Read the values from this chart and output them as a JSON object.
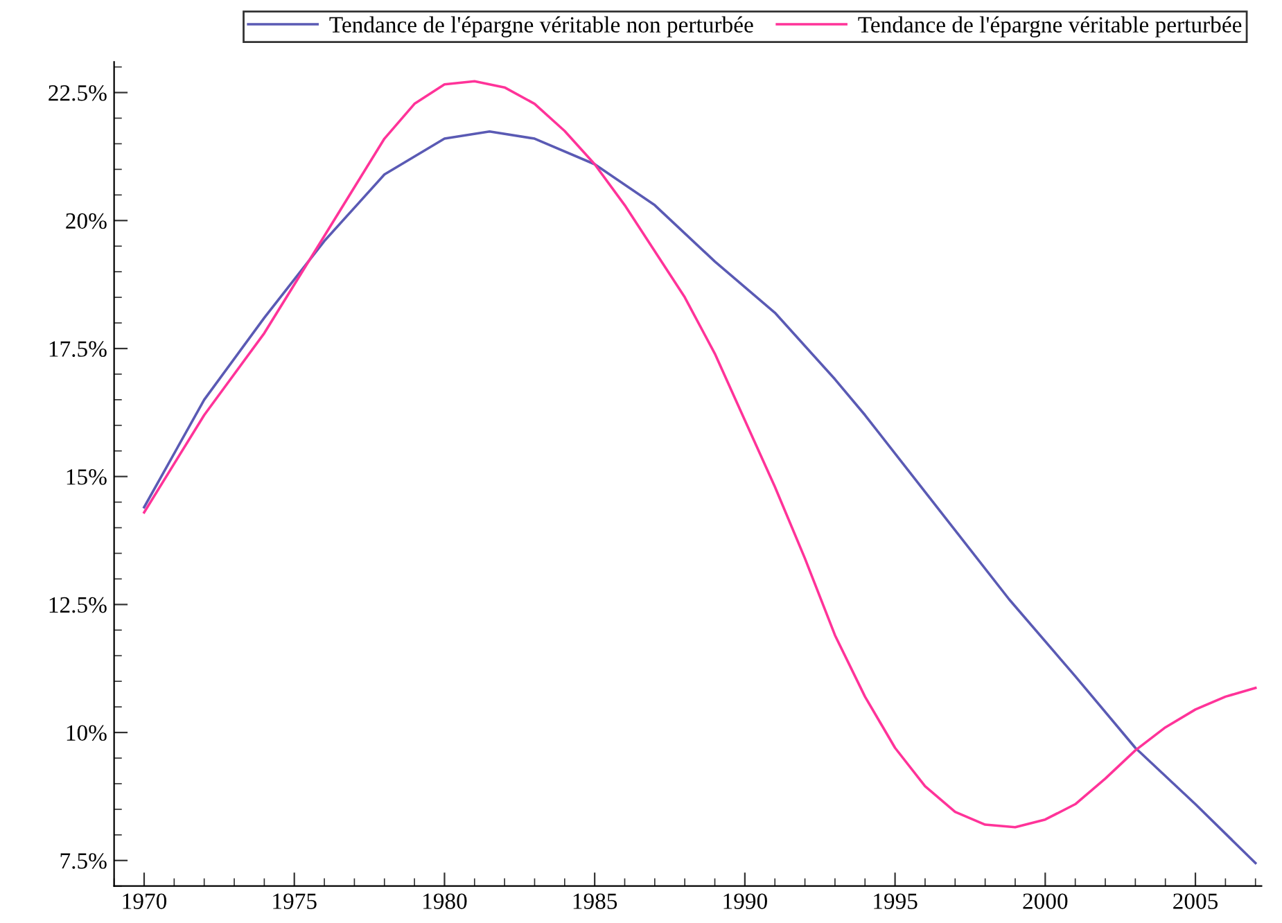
{
  "chart_data": {
    "type": "line",
    "xlim": [
      1969,
      2007.2
    ],
    "ylim": [
      7.0,
      23.1
    ],
    "xticks": [
      1970,
      1975,
      1980,
      1985,
      1990,
      1995,
      2000,
      2005
    ],
    "yticks": [
      {
        "value": 7.5,
        "label": "7.5%"
      },
      {
        "value": 10,
        "label": "10%"
      },
      {
        "value": 12.5,
        "label": "12.5%"
      },
      {
        "value": 15,
        "label": "15%"
      },
      {
        "value": 17.5,
        "label": "17.5%"
      },
      {
        "value": 20,
        "label": "20%"
      },
      {
        "value": 22.5,
        "label": "22.5%"
      }
    ],
    "grid": false,
    "legend": "top",
    "marker": "none",
    "line_style": "solid",
    "series": [
      {
        "name": "Tendance de l'épargne véritable non perturbée",
        "color": "#5a5ab4",
        "x": [
          1970,
          1972,
          1974,
          1976,
          1978,
          1980,
          1981.5,
          1983,
          1985,
          1987,
          1989,
          1991,
          1993,
          1994,
          1996,
          1998.8,
          2001,
          2003,
          2005,
          2007
        ],
        "values": [
          14.4,
          16.5,
          18.1,
          19.6,
          20.9,
          21.6,
          21.74,
          21.6,
          21.1,
          20.3,
          19.2,
          18.2,
          16.9,
          16.2,
          14.7,
          12.6,
          11.1,
          9.7,
          8.6,
          7.45
        ]
      },
      {
        "name": "Tendance de l'épargne véritable perturbée",
        "color": "#ff3399",
        "x": [
          1970,
          1972,
          1974,
          1976,
          1978,
          1979,
          1980,
          1981,
          1982,
          1983,
          1984,
          1985,
          1986,
          1987,
          1988,
          1989,
          1990,
          1991,
          1992,
          1993,
          1994,
          1995,
          1996,
          1997,
          1998,
          1999,
          2000,
          2001,
          2002,
          2003,
          2004,
          2005,
          2006,
          2007
        ],
        "values": [
          14.3,
          16.2,
          17.8,
          19.7,
          21.6,
          22.28,
          22.66,
          22.72,
          22.6,
          22.28,
          21.75,
          21.1,
          20.3,
          19.4,
          18.5,
          17.4,
          16.1,
          14.8,
          13.4,
          11.9,
          10.7,
          9.7,
          8.95,
          8.45,
          8.2,
          8.15,
          8.3,
          8.6,
          9.1,
          9.65,
          10.1,
          10.45,
          10.7,
          10.87
        ]
      }
    ]
  }
}
